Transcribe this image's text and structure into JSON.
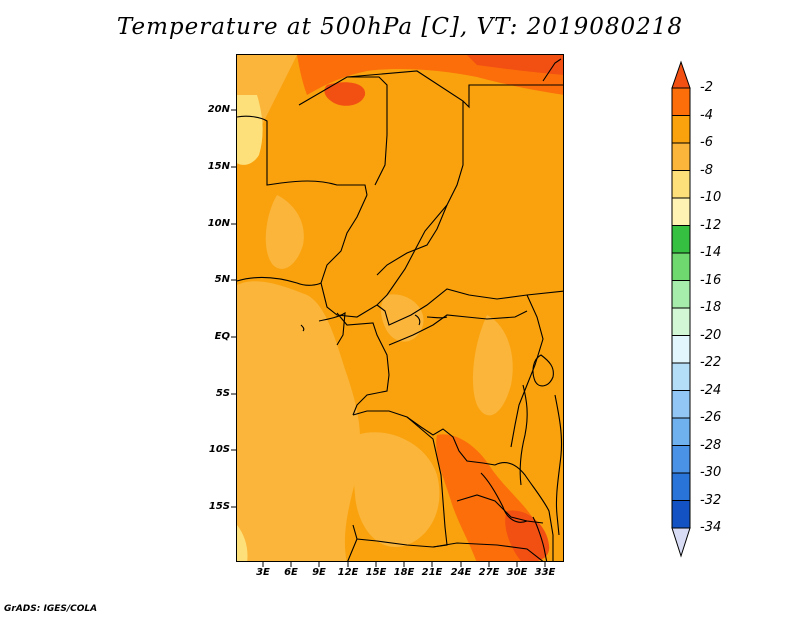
{
  "title": "Temperature at 500hPa [C], VT: 2019080218",
  "credit": "GrADS: IGES/COLA",
  "map": {
    "y_ticks": [
      "20N",
      "15N",
      "10N",
      "5N",
      "EQ",
      "5S",
      "10S",
      "15S"
    ],
    "x_ticks": [
      "3E",
      "6E",
      "9E",
      "12E",
      "15E",
      "18E",
      "21E",
      "24E",
      "27E",
      "30E",
      "33E"
    ]
  },
  "colorbar": {
    "labels": [
      "-2",
      "-4",
      "-6",
      "-8",
      "-10",
      "-12",
      "-14",
      "-16",
      "-18",
      "-20",
      "-22",
      "-24",
      "-26",
      "-28",
      "-30",
      "-32",
      "-34"
    ],
    "colors": [
      "#f24f12",
      "#fb6e0a",
      "#f9a20d",
      "#fbb53a",
      "#fde07a",
      "#fef3b2",
      "#36c042",
      "#6fd86f",
      "#a6ecaa",
      "#d2f7d4",
      "#e1f6fd",
      "#b4ddf8",
      "#92c6f4",
      "#6fb0ef",
      "#4a92e6",
      "#2874d8",
      "#1252c2",
      "#0a2890",
      "#d8dcf4"
    ]
  }
}
